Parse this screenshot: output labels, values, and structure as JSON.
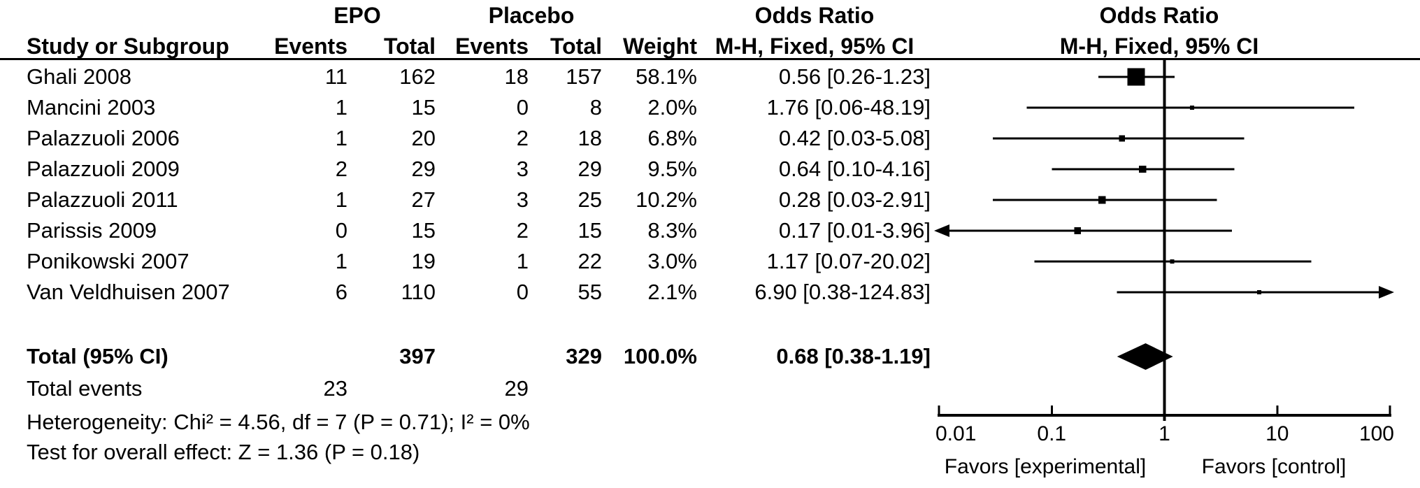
{
  "header": {
    "group1": "EPO",
    "group2": "Placebo",
    "or_text_col_title": "Odds Ratio",
    "or_plot_col_title": "Odds Ratio",
    "study_col": "Study or Subgroup",
    "events_col": "Events",
    "total_col": "Total",
    "events2_col": "Events",
    "total2_col": "Total",
    "weight_col": "Weight",
    "mh_text_col": "M-H, Fixed, 95% CI",
    "mh_plot_col": "M-H, Fixed, 95% CI"
  },
  "table": {
    "rows": [
      {
        "study": "Ghali 2008",
        "e1": "11",
        "t1": "162",
        "e2": "18",
        "t2": "157",
        "weight": "58.1%",
        "or_ci": "0.56 [0.26-1.23]"
      },
      {
        "study": "Mancini 2003",
        "e1": "1",
        "t1": "15",
        "e2": "0",
        "t2": "8",
        "weight": "2.0%",
        "or_ci": "1.76 [0.06-48.19]"
      },
      {
        "study": "Palazzuoli 2006",
        "e1": "1",
        "t1": "20",
        "e2": "2",
        "t2": "18",
        "weight": "6.8%",
        "or_ci": "0.42 [0.03-5.08]"
      },
      {
        "study": "Palazzuoli 2009",
        "e1": "2",
        "t1": "29",
        "e2": "3",
        "t2": "29",
        "weight": "9.5%",
        "or_ci": "0.64 [0.10-4.16]"
      },
      {
        "study": "Palazzuoli 2011",
        "e1": "1",
        "t1": "27",
        "e2": "3",
        "t2": "25",
        "weight": "10.2%",
        "or_ci": "0.28 [0.03-2.91]"
      },
      {
        "study": "Parissis 2009",
        "e1": "0",
        "t1": "15",
        "e2": "2",
        "t2": "15",
        "weight": "8.3%",
        "or_ci": "0.17 [0.01-3.96]"
      },
      {
        "study": "Ponikowski 2007",
        "e1": "1",
        "t1": "19",
        "e2": "1",
        "t2": "22",
        "weight": "3.0%",
        "or_ci": "1.17 [0.07-20.02]"
      },
      {
        "study": "Van Veldhuisen 2007",
        "e1": "6",
        "t1": "110",
        "e2": "0",
        "t2": "55",
        "weight": "2.1%",
        "or_ci": "6.90 [0.38-124.83]"
      }
    ],
    "total_row": {
      "label": "Total (95% CI)",
      "t1": "397",
      "t2": "329",
      "weight": "100.0%",
      "or_ci": "0.68 [0.38-1.19]"
    },
    "total_events": {
      "label": "Total events",
      "e1": "23",
      "e2": "29"
    },
    "heterogeneity": "Heterogeneity: Chi² = 4.56, df = 7 (P = 0.71); I² = 0%",
    "overall_effect": "Test for overall effect: Z = 1.36 (P = 0.18)"
  },
  "chart_data": {
    "type": "forest_plot",
    "effect_measure": "Odds Ratio, M-H, Fixed, 95% CI",
    "x_scale": "log10",
    "xlim": [
      0.01,
      100
    ],
    "x_ticks": [
      0.01,
      0.1,
      1,
      10,
      100
    ],
    "x_tick_labels": [
      "0.01",
      "0.1",
      "1",
      "10",
      "100"
    ],
    "axis_labels": {
      "left": "Favors [experimental]",
      "right": "Favors [control]"
    },
    "reference_line": 1,
    "studies": [
      {
        "name": "Ghali 2008",
        "or": 0.56,
        "ci_low": 0.26,
        "ci_high": 1.23,
        "weight": 58.1,
        "arrow_left": false,
        "arrow_right": false
      },
      {
        "name": "Mancini 2003",
        "or": 1.76,
        "ci_low": 0.06,
        "ci_high": 48.19,
        "weight": 2.0,
        "arrow_left": false,
        "arrow_right": false
      },
      {
        "name": "Palazzuoli 2006",
        "or": 0.42,
        "ci_low": 0.03,
        "ci_high": 5.08,
        "weight": 6.8,
        "arrow_left": false,
        "arrow_right": false
      },
      {
        "name": "Palazzuoli 2009",
        "or": 0.64,
        "ci_low": 0.1,
        "ci_high": 4.16,
        "weight": 9.5,
        "arrow_left": false,
        "arrow_right": false
      },
      {
        "name": "Palazzuoli 2011",
        "or": 0.28,
        "ci_low": 0.03,
        "ci_high": 2.91,
        "weight": 10.2,
        "arrow_left": false,
        "arrow_right": false
      },
      {
        "name": "Parissis 2009",
        "or": 0.17,
        "ci_low": 0.01,
        "ci_high": 3.96,
        "weight": 8.3,
        "arrow_left": true,
        "arrow_right": false
      },
      {
        "name": "Ponikowski 2007",
        "or": 1.17,
        "ci_low": 0.07,
        "ci_high": 20.02,
        "weight": 3.0,
        "arrow_left": false,
        "arrow_right": false
      },
      {
        "name": "Van Veldhuisen 2007",
        "or": 6.9,
        "ci_low": 0.38,
        "ci_high": 124.83,
        "weight": 2.1,
        "arrow_left": false,
        "arrow_right": true
      }
    ],
    "total": {
      "name": "Total (95% CI)",
      "or": 0.68,
      "ci_low": 0.38,
      "ci_high": 1.19,
      "weight": 100.0
    }
  },
  "colors": {
    "ink": "#000000",
    "background": "#ffffff"
  }
}
